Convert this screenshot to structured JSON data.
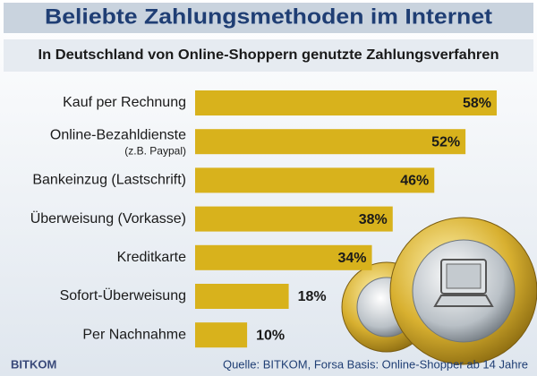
{
  "chart_data": {
    "type": "bar",
    "orientation": "horizontal",
    "title": "Beliebte Zahlungsmethoden im Internet",
    "subtitle": "In Deutschland von Online-Shoppern genutzte Zahlungsverfahren",
    "categories": [
      "Kauf per Rechnung",
      "Online-Bezahldienste",
      "Bankeinzug (Lastschrift)",
      "Überweisung (Vorkasse)",
      "Kreditkarte",
      "Sofort-Überweisung",
      "Per Nachnahme"
    ],
    "category_sublabels": [
      null,
      "(z.B. Paypal)",
      null,
      null,
      null,
      null,
      null
    ],
    "values": [
      58,
      52,
      46,
      38,
      34,
      18,
      10
    ],
    "value_labels": [
      "58%",
      "52%",
      "46%",
      "38%",
      "34%",
      "18%",
      "10%"
    ],
    "color": "#d8b21c",
    "source": "Quelle: BITKOM, Forsa Basis: Online-Shopper ab 14 Jahre",
    "logo": "BITKOM"
  }
}
